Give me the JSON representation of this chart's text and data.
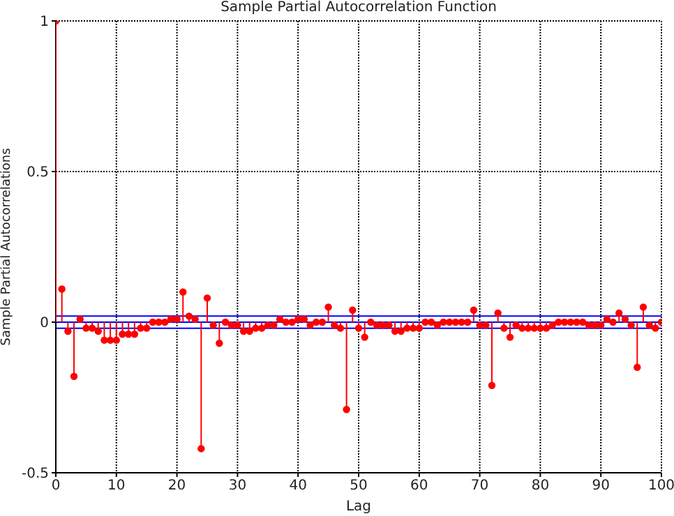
{
  "chart_data": {
    "type": "lollipop",
    "title": "Sample Partial Autocorrelation Function",
    "xlabel": "Lag",
    "ylabel": "Sample Partial Autocorrelations",
    "x": [
      0,
      1,
      2,
      3,
      4,
      5,
      6,
      7,
      8,
      9,
      10,
      11,
      12,
      13,
      14,
      15,
      16,
      17,
      18,
      19,
      20,
      21,
      22,
      23,
      24,
      25,
      26,
      27,
      28,
      29,
      30,
      31,
      32,
      33,
      34,
      35,
      36,
      37,
      38,
      39,
      40,
      41,
      42,
      43,
      44,
      45,
      46,
      47,
      48,
      49,
      50,
      51,
      52,
      53,
      54,
      55,
      56,
      57,
      58,
      59,
      60,
      61,
      62,
      63,
      64,
      65,
      66,
      67,
      68,
      69,
      70,
      71,
      72,
      73,
      74,
      75,
      76,
      77,
      78,
      79,
      80,
      81,
      82,
      83,
      84,
      85,
      86,
      87,
      88,
      89,
      90,
      91,
      92,
      93,
      94,
      95,
      96,
      97,
      98,
      99,
      100
    ],
    "series": [
      {
        "color": "#ff0000",
        "values": [
          1,
          0.11,
          -0.03,
          -0.18,
          0.01,
          -0.02,
          -0.02,
          -0.03,
          -0.06,
          -0.06,
          -0.06,
          -0.04,
          -0.04,
          -0.04,
          -0.02,
          -0.02,
          0,
          0,
          0,
          0.01,
          0.01,
          0.1,
          0.02,
          0.01,
          -0.42,
          0.08,
          -0.01,
          -0.07,
          0,
          -0.01,
          -0.01,
          -0.03,
          -0.03,
          -0.02,
          -0.02,
          -0.01,
          -0.01,
          0.01,
          0,
          0,
          0.01,
          0.01,
          -0.01,
          0,
          0,
          0.05,
          -0.01,
          -0.02,
          -0.29,
          0.04,
          -0.02,
          -0.05,
          0,
          -0.01,
          -0.01,
          -0.01,
          -0.03,
          -0.03,
          -0.02,
          -0.02,
          -0.02,
          0,
          0,
          -0.01,
          0,
          0,
          0,
          0,
          0,
          0.04,
          -0.01,
          -0.01,
          -0.21,
          0.03,
          -0.02,
          -0.05,
          -0.01,
          -0.02,
          -0.02,
          -0.02,
          -0.02,
          -0.02,
          -0.01,
          0,
          0,
          0,
          0,
          0,
          -0.01,
          -0.01,
          -0.01,
          0.01,
          0,
          0.03,
          0.01,
          -0.01,
          -0.15,
          0.05,
          -0.01,
          -0.02,
          0
        ]
      }
    ],
    "xlim": [
      0,
      100
    ],
    "xticks": [
      0,
      10,
      20,
      30,
      40,
      50,
      60,
      70,
      80,
      90,
      100
    ],
    "ylim": [
      -0.5,
      1
    ],
    "yticks": [
      -0.5,
      0,
      0.5,
      1
    ],
    "ref_lines": [
      {
        "axis": "y",
        "value": 0.02,
        "color": "#0000ff"
      },
      {
        "axis": "y",
        "value": 0,
        "color": "#0000ff"
      },
      {
        "axis": "y",
        "value": -0.02,
        "color": "#0000ff"
      }
    ],
    "grid": true,
    "marker": "circle",
    "line_style": "solid"
  }
}
